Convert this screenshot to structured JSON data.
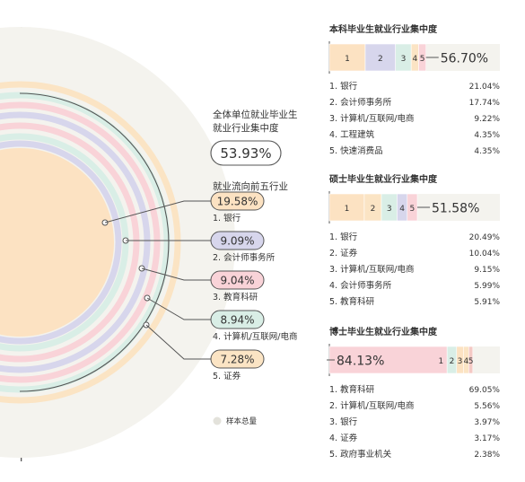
{
  "colors": {
    "bank": "#fce2c2",
    "accounting": "#d7d6ec",
    "education": "#f9d3d8",
    "internet": "#d9eee6",
    "securities": "#fbe4c4",
    "total": "#ecebe4",
    "small": "#f4c9c5",
    "stroke": "#555555"
  },
  "left": {
    "overall_title_1": "全体单位就业毕业生",
    "overall_title_2": "就业行业集中度",
    "overall_value": "53.93%",
    "top5_title": "就业流向前五行业",
    "legend_label": "样本总量"
  },
  "chart_data": [
    {
      "type": "radial-bar",
      "title": "就业流向前五行业",
      "categories": [
        "1. 银行",
        "2. 会计师事务所",
        "3. 教育科研",
        "4. 计算机/互联网/电商",
        "5. 证券"
      ],
      "values": [
        19.58,
        9.09,
        9.04,
        8.94,
        7.28
      ],
      "labels": [
        "19.58%",
        "9.09%",
        "9.04%",
        "8.94%",
        "7.28%"
      ],
      "overall_concentration": 53.93,
      "legend": [
        "样本总量"
      ]
    },
    {
      "type": "bar",
      "title": "本科毕业生就业行业集中度",
      "total_label": "56.70%",
      "segment_labels": [
        "1",
        "2",
        "3",
        "4",
        "5"
      ],
      "items": [
        {
          "name": "1. 银行",
          "pct": "21.04%",
          "value": 21.04
        },
        {
          "name": "2. 会计师事务所",
          "pct": "17.74%",
          "value": 17.74
        },
        {
          "name": "3. 计算机/互联网/电商",
          "pct": "9.22%",
          "value": 9.22
        },
        {
          "name": "4. 工程建筑",
          "pct": "4.35%",
          "value": 4.35
        },
        {
          "name": "5. 快速消费品",
          "pct": "4.35%",
          "value": 4.35
        }
      ]
    },
    {
      "type": "bar",
      "title": "硕士毕业生就业行业集中度",
      "total_label": "51.58%",
      "segment_labels": [
        "1",
        "2",
        "3",
        "4",
        "5"
      ],
      "items": [
        {
          "name": "1. 银行",
          "pct": "20.49%",
          "value": 20.49
        },
        {
          "name": "2. 证券",
          "pct": "10.04%",
          "value": 10.04
        },
        {
          "name": "3. 计算机/互联网/电商",
          "pct": "9.15%",
          "value": 9.15
        },
        {
          "name": "4. 会计师事务所",
          "pct": "5.99%",
          "value": 5.99
        },
        {
          "name": "5. 教育科研",
          "pct": "5.91%",
          "value": 5.91
        }
      ]
    },
    {
      "type": "bar",
      "title": "博士毕业生就业行业集中度",
      "total_label": "84.13%",
      "segment_labels": [
        "1",
        "2",
        "3",
        "4",
        "5"
      ],
      "items": [
        {
          "name": "1. 教育科研",
          "pct": "69.05%",
          "value": 69.05
        },
        {
          "name": "2. 计算机/互联网/电商",
          "pct": "5.56%",
          "value": 5.56
        },
        {
          "name": "3. 银行",
          "pct": "3.97%",
          "value": 3.97
        },
        {
          "name": "4. 证券",
          "pct": "3.17%",
          "value": 3.17
        },
        {
          "name": "5. 政府事业机关",
          "pct": "2.38%",
          "value": 2.38
        }
      ]
    }
  ]
}
